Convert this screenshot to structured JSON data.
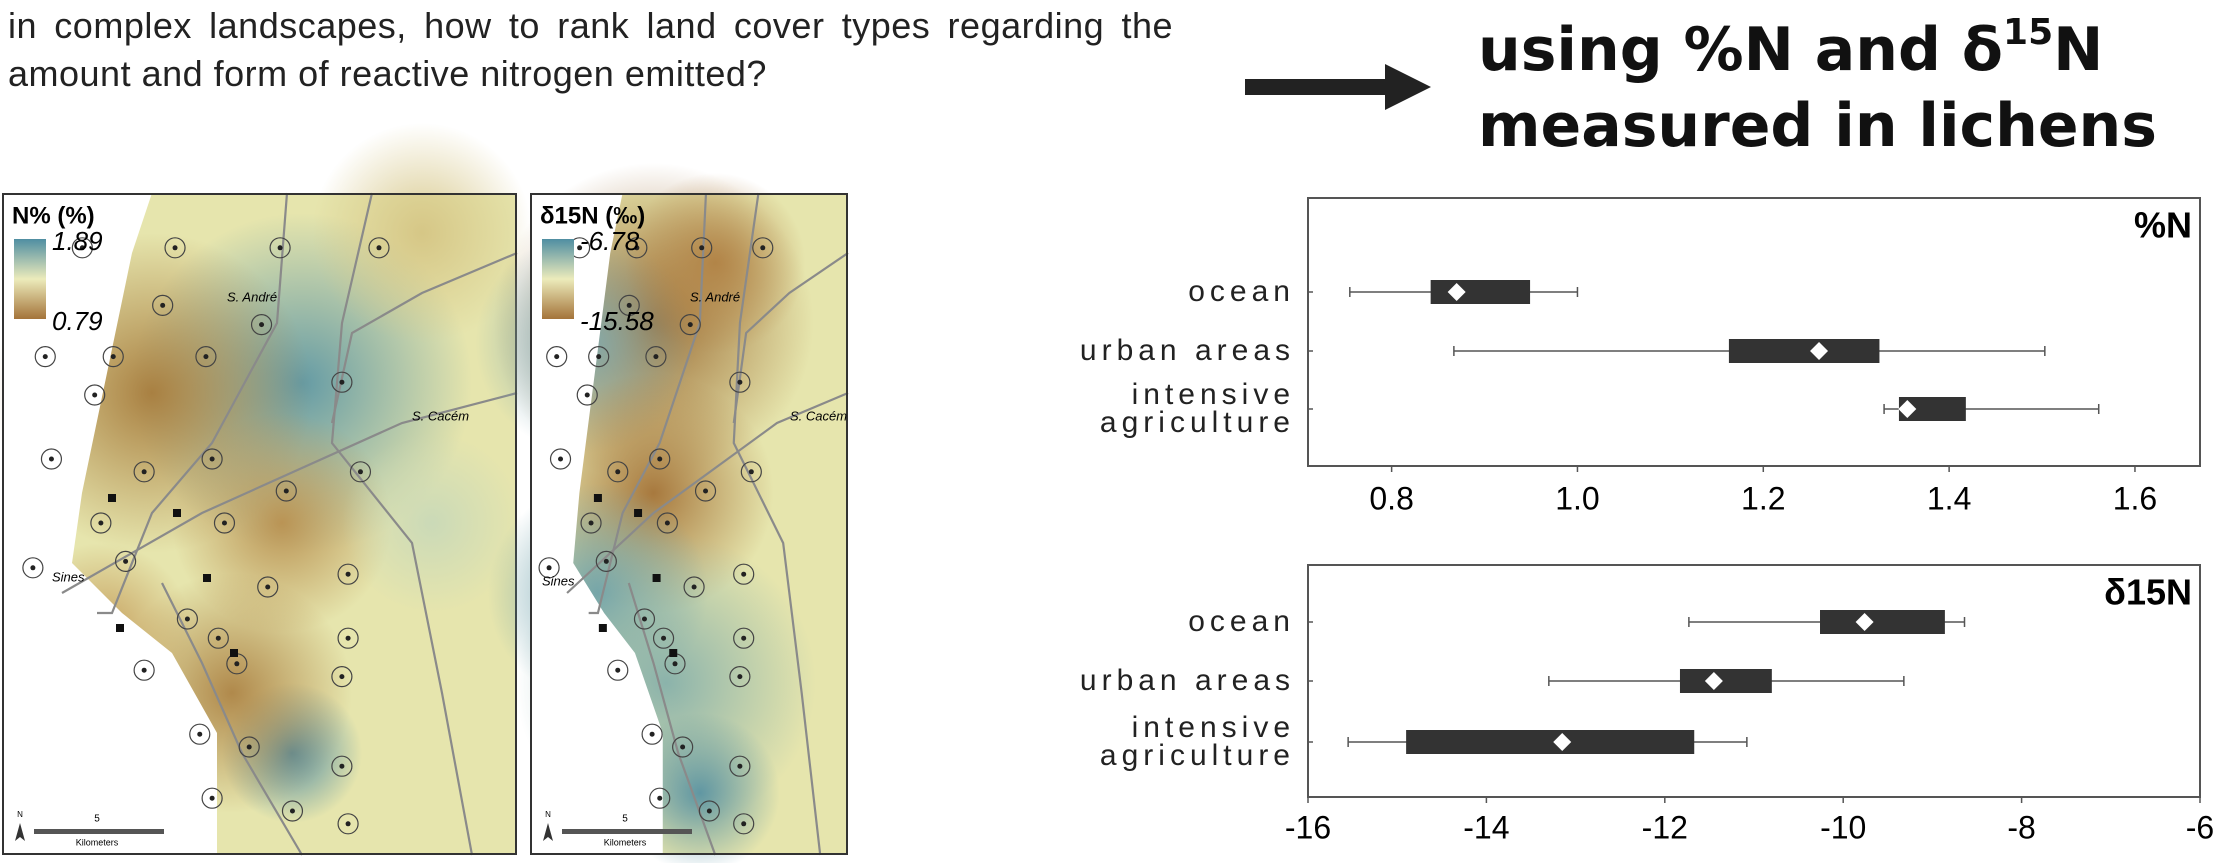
{
  "header": {
    "question": "in complex landscapes,  how to rank land cover types regarding the amount and form of reactive nitrogen emitted?",
    "heading": [
      "using %N and δ",
      "15",
      "N",
      "measured in lichens"
    ]
  },
  "maps": [
    {
      "title": "N% (%)",
      "legend_max": 1.89,
      "legend_min": 0.79,
      "places": [
        "S. André",
        "S. Cacém",
        "Sines"
      ],
      "scale_value": 5,
      "scale_unit": "Kilometers",
      "north": "N"
    },
    {
      "title": "δ15N (‰)",
      "legend_max": -6.78,
      "legend_min": -15.58,
      "places": [
        "S. André",
        "S. Cacém",
        "Sines"
      ],
      "scale_value": 5,
      "scale_unit": "Kilometers",
      "north": "N"
    }
  ],
  "chart_data": [
    {
      "type": "boxplot",
      "title": "%N",
      "categories": [
        "ocean",
        "urban areas",
        "intensive agriculture"
      ],
      "boxes": [
        {
          "low": 0.755,
          "q1": 0.842,
          "q3": 0.949,
          "high": 1.0,
          "mean": 0.87
        },
        {
          "low": 0.867,
          "q1": 1.163,
          "q3": 1.325,
          "high": 1.503,
          "mean": 1.26
        },
        {
          "low": 1.33,
          "q1": 1.346,
          "q3": 1.418,
          "high": 1.561,
          "mean": 1.355
        }
      ],
      "xlim": [
        0.71,
        1.67
      ],
      "xticks": [
        0.8,
        {
          "value": 1,
          "label": "1.0"
        },
        1.2,
        1.4,
        1.6
      ],
      "color": "#333333"
    },
    {
      "type": "boxplot",
      "title": "δ15N",
      "categories": [
        "ocean",
        "urban areas",
        "intensive agriculture"
      ],
      "boxes": [
        {
          "low": -11.73,
          "q1": -10.26,
          "q3": -8.86,
          "high": -8.64,
          "mean": -9.76
        },
        {
          "low": -13.3,
          "q1": -11.83,
          "q3": -10.8,
          "high": -9.32,
          "mean": -11.45
        },
        {
          "low": -15.55,
          "q1": -14.9,
          "q3": -11.67,
          "high": -11.08,
          "mean": -13.15
        }
      ],
      "xlim": [
        -16,
        -6
      ],
      "xticks": [
        -16,
        -14,
        -12,
        -10,
        -8,
        -6
      ],
      "color": "#333333"
    }
  ]
}
